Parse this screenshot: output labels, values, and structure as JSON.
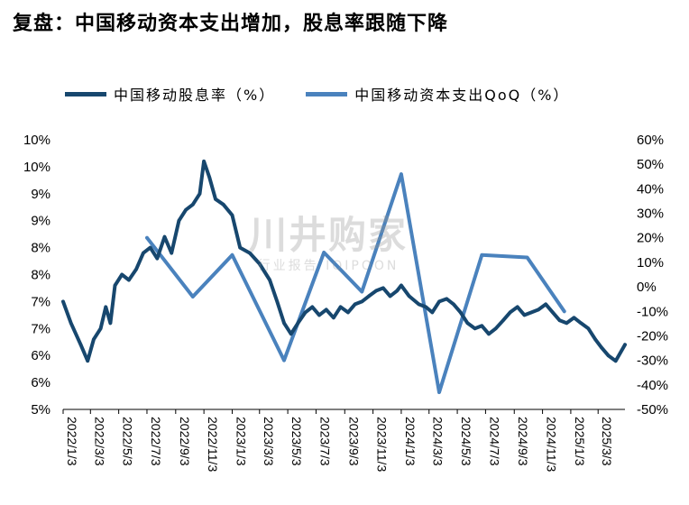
{
  "title": "复盘：中国移动资本支出增加，股息率跟随下降",
  "watermark": {
    "main": "川井购家",
    "sub": "行业报告 IQIPOON"
  },
  "chart_data": {
    "type": "line",
    "legend_position": "top",
    "grid": false,
    "colors": {
      "dividend": "#17476e",
      "capex": "#4a82bd"
    },
    "y_left": {
      "lim": [
        5,
        10
      ],
      "tick_labels": [
        "10%",
        "10%",
        "9%",
        "9%",
        "8%",
        "8%",
        "7%",
        "7%",
        "6%",
        "6%",
        "5%"
      ]
    },
    "y_right": {
      "lim": [
        -50,
        60
      ],
      "tick_labels": [
        "60%",
        "50%",
        "40%",
        "30%",
        "20%",
        "10%",
        "0%",
        "-10%",
        "-20%",
        "-30%",
        "-40%",
        "-50%"
      ]
    },
    "x_labels": [
      "2022/1/3",
      "2022/3/3",
      "2022/5/3",
      "2022/7/3",
      "2022/9/3",
      "2022/11/3",
      "2023/1/3",
      "2023/3/3",
      "2023/5/3",
      "2023/7/3",
      "2023/9/3",
      "2023/11/3",
      "2024/1/3",
      "2024/3/3",
      "2024/5/3",
      "2024/7/3",
      "2024/9/3",
      "2024/11/3",
      "2025/1/3",
      "2025/3/3"
    ],
    "x_range": [
      "2022/1/3",
      "2025/4/30"
    ],
    "series": [
      {
        "name": "中国移动股息率（%）",
        "axis": "left",
        "points": [
          [
            "2022/1/3",
            7.0
          ],
          [
            "2022/1/20",
            6.6
          ],
          [
            "2022/2/10",
            6.2
          ],
          [
            "2022/2/25",
            5.9
          ],
          [
            "2022/3/10",
            6.3
          ],
          [
            "2022/3/25",
            6.5
          ],
          [
            "2022/4/5",
            6.9
          ],
          [
            "2022/4/15",
            6.6
          ],
          [
            "2022/4/25",
            7.3
          ],
          [
            "2022/5/10",
            7.5
          ],
          [
            "2022/5/25",
            7.4
          ],
          [
            "2022/6/10",
            7.6
          ],
          [
            "2022/6/25",
            7.9
          ],
          [
            "2022/7/10",
            8.0
          ],
          [
            "2022/7/25",
            7.8
          ],
          [
            "2022/8/10",
            8.2
          ],
          [
            "2022/8/25",
            7.9
          ],
          [
            "2022/9/10",
            8.5
          ],
          [
            "2022/9/25",
            8.7
          ],
          [
            "2022/10/10",
            8.8
          ],
          [
            "2022/10/25",
            9.0
          ],
          [
            "2022/11/3",
            9.6
          ],
          [
            "2022/11/15",
            9.3
          ],
          [
            "2022/11/28",
            8.9
          ],
          [
            "2022/12/15",
            8.8
          ],
          [
            "2023/1/3",
            8.6
          ],
          [
            "2023/1/20",
            8.0
          ],
          [
            "2023/2/10",
            7.9
          ],
          [
            "2023/3/3",
            7.7
          ],
          [
            "2023/3/25",
            7.4
          ],
          [
            "2023/4/10",
            7.0
          ],
          [
            "2023/4/25",
            6.6
          ],
          [
            "2023/5/10",
            6.4
          ],
          [
            "2023/5/25",
            6.6
          ],
          [
            "2023/6/10",
            6.8
          ],
          [
            "2023/6/25",
            6.9
          ],
          [
            "2023/7/10",
            6.75
          ],
          [
            "2023/7/25",
            6.85
          ],
          [
            "2023/8/10",
            6.7
          ],
          [
            "2023/8/25",
            6.9
          ],
          [
            "2023/9/10",
            6.8
          ],
          [
            "2023/9/25",
            6.95
          ],
          [
            "2023/10/10",
            7.0
          ],
          [
            "2023/10/25",
            7.1
          ],
          [
            "2023/11/10",
            7.2
          ],
          [
            "2023/11/25",
            7.25
          ],
          [
            "2023/12/10",
            7.1
          ],
          [
            "2023/12/25",
            7.2
          ],
          [
            "2024/1/3",
            7.3
          ],
          [
            "2024/1/20",
            7.1
          ],
          [
            "2024/2/10",
            6.95
          ],
          [
            "2024/2/25",
            6.9
          ],
          [
            "2024/3/10",
            6.8
          ],
          [
            "2024/3/25",
            7.0
          ],
          [
            "2024/4/10",
            7.05
          ],
          [
            "2024/4/25",
            6.95
          ],
          [
            "2024/5/10",
            6.8
          ],
          [
            "2024/5/25",
            6.6
          ],
          [
            "2024/6/10",
            6.5
          ],
          [
            "2024/6/25",
            6.55
          ],
          [
            "2024/7/10",
            6.4
          ],
          [
            "2024/7/25",
            6.5
          ],
          [
            "2024/8/10",
            6.65
          ],
          [
            "2024/8/25",
            6.8
          ],
          [
            "2024/9/10",
            6.9
          ],
          [
            "2024/9/25",
            6.75
          ],
          [
            "2024/10/10",
            6.8
          ],
          [
            "2024/10/25",
            6.85
          ],
          [
            "2024/11/10",
            6.95
          ],
          [
            "2024/11/25",
            6.8
          ],
          [
            "2024/12/10",
            6.65
          ],
          [
            "2024/12/25",
            6.6
          ],
          [
            "2025/1/10",
            6.7
          ],
          [
            "2025/1/25",
            6.6
          ],
          [
            "2025/2/10",
            6.5
          ],
          [
            "2025/2/25",
            6.3
          ],
          [
            "2025/3/10",
            6.15
          ],
          [
            "2025/3/25",
            6.0
          ],
          [
            "2025/4/10",
            5.9
          ],
          [
            "2025/4/30",
            6.2
          ]
        ]
      },
      {
        "name": "中国移动资本支出QoQ（%）",
        "axis": "right",
        "points": [
          [
            "2022/7/3",
            20
          ],
          [
            "2022/10/10",
            -4
          ],
          [
            "2023/1/3",
            13
          ],
          [
            "2023/4/25",
            -30
          ],
          [
            "2023/7/20",
            14
          ],
          [
            "2023/10/10",
            -2
          ],
          [
            "2024/1/3",
            46
          ],
          [
            "2024/3/25",
            -43
          ],
          [
            "2024/6/25",
            13
          ],
          [
            "2024/10/1",
            12
          ],
          [
            "2024/12/20",
            -10
          ]
        ]
      }
    ]
  }
}
